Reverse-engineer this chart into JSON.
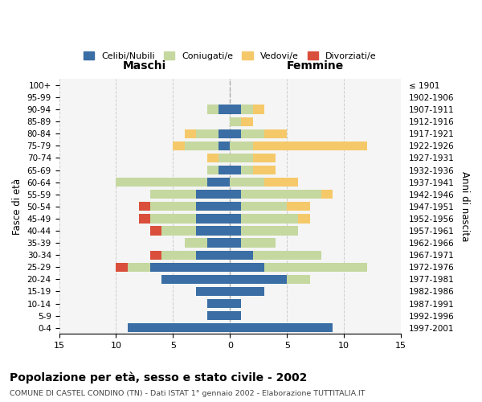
{
  "age_groups": [
    "0-4",
    "5-9",
    "10-14",
    "15-19",
    "20-24",
    "25-29",
    "30-34",
    "35-39",
    "40-44",
    "45-49",
    "50-54",
    "55-59",
    "60-64",
    "65-69",
    "70-74",
    "75-79",
    "80-84",
    "85-89",
    "90-94",
    "95-99",
    "100+"
  ],
  "birth_years": [
    "1997-2001",
    "1992-1996",
    "1987-1991",
    "1982-1986",
    "1977-1981",
    "1972-1976",
    "1967-1971",
    "1962-1966",
    "1957-1961",
    "1952-1956",
    "1947-1951",
    "1942-1946",
    "1937-1941",
    "1932-1936",
    "1927-1931",
    "1922-1926",
    "1917-1921",
    "1912-1916",
    "1907-1911",
    "1902-1906",
    "≤ 1901"
  ],
  "maschi": {
    "celibi": [
      9,
      2,
      2,
      3,
      6,
      7,
      3,
      2,
      3,
      3,
      3,
      3,
      2,
      1,
      0,
      1,
      1,
      0,
      1,
      0,
      0
    ],
    "coniugati": [
      0,
      0,
      0,
      0,
      0,
      2,
      3,
      2,
      3,
      4,
      4,
      4,
      8,
      1,
      1,
      3,
      2,
      0,
      1,
      0,
      0
    ],
    "vedovi": [
      0,
      0,
      0,
      0,
      0,
      0,
      0,
      0,
      0,
      0,
      0,
      0,
      0,
      0,
      1,
      1,
      1,
      0,
      0,
      0,
      0
    ],
    "divorziati": [
      0,
      0,
      0,
      0,
      0,
      1,
      1,
      0,
      1,
      1,
      1,
      0,
      0,
      0,
      0,
      0,
      0,
      0,
      0,
      0,
      0
    ]
  },
  "femmine": {
    "nubili": [
      9,
      1,
      1,
      3,
      5,
      3,
      2,
      1,
      1,
      1,
      1,
      1,
      0,
      1,
      0,
      0,
      1,
      0,
      1,
      0,
      0
    ],
    "coniugate": [
      0,
      0,
      0,
      0,
      2,
      9,
      6,
      3,
      5,
      5,
      4,
      7,
      3,
      1,
      2,
      2,
      2,
      1,
      1,
      0,
      0
    ],
    "vedove": [
      0,
      0,
      0,
      0,
      0,
      0,
      0,
      0,
      0,
      1,
      2,
      1,
      3,
      2,
      2,
      10,
      2,
      1,
      1,
      0,
      0
    ],
    "divorziate": [
      0,
      0,
      0,
      0,
      0,
      0,
      0,
      0,
      0,
      0,
      0,
      0,
      0,
      0,
      0,
      0,
      0,
      0,
      0,
      0,
      0
    ]
  },
  "colors": {
    "celibi": "#3A6EA5",
    "coniugati": "#C5D8A0",
    "vedovi": "#F5C96A",
    "divorziati": "#D94F3B"
  },
  "xlim": 15,
  "title": "Popolazione per età, sesso e stato civile - 2002",
  "subtitle": "COMUNE DI CASTEL CONDINO (TN) - Dati ISTAT 1° gennaio 2002 - Elaborazione TUTTITALIA.IT",
  "ylabel_left": "Fasce di età",
  "ylabel_right": "Anni di nascita",
  "xlabel_left": "Maschi",
  "xlabel_right": "Femmine"
}
